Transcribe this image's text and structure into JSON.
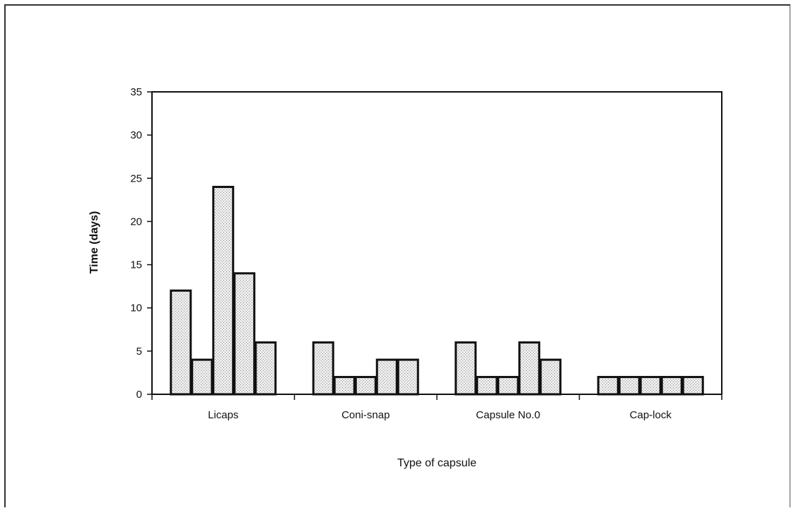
{
  "chart_data": {
    "type": "bar",
    "title": "",
    "xlabel": "Type of capsule",
    "ylabel": "Time (days)",
    "ylim": [
      0,
      35
    ],
    "yticks": [
      "0",
      "5",
      "10",
      "15",
      "20",
      "25",
      "30",
      "35"
    ],
    "categories": [
      "Licaps",
      "Coni-snap",
      "Capsule No.0",
      "Cap-lock"
    ],
    "bars_per_category": 5,
    "values": [
      [
        12,
        4,
        24,
        14,
        6
      ],
      [
        6,
        2,
        2,
        4,
        4
      ],
      [
        6,
        2,
        2,
        6,
        4
      ],
      [
        2,
        2,
        2,
        2,
        2
      ]
    ],
    "grid": false,
    "bar_fill": "#e6e6e6",
    "bar_edge": "#111111"
  }
}
